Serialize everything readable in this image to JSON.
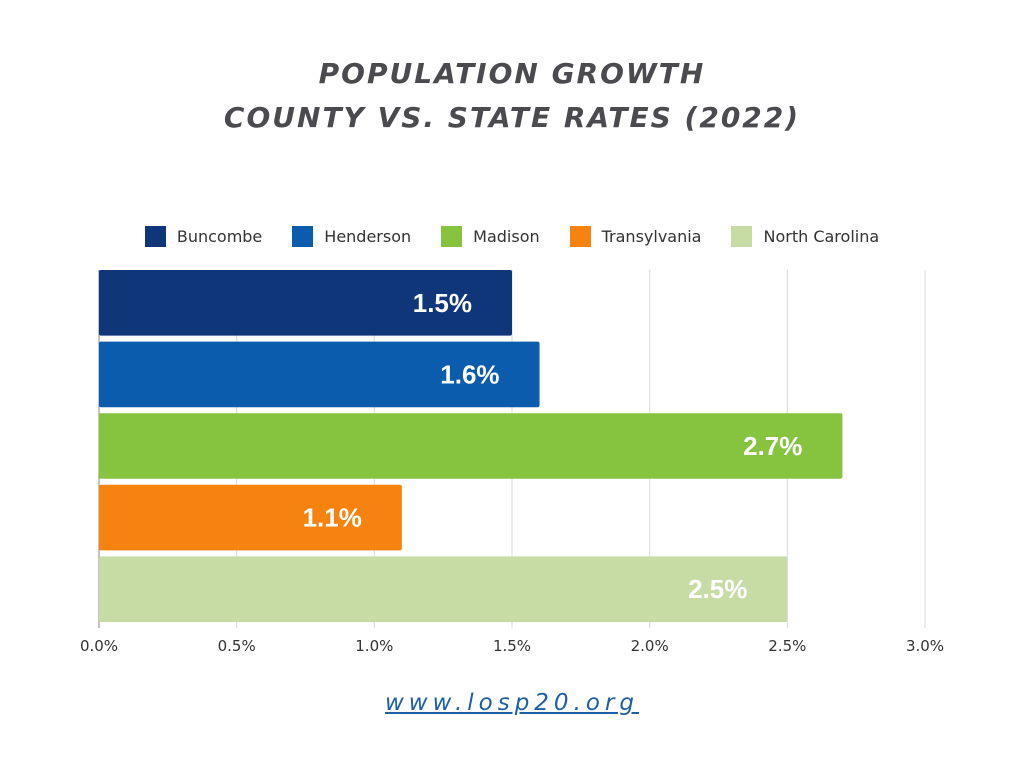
{
  "title_line1": "POPULATION GROWTH",
  "title_line2": "COUNTY VS. STATE RATES (2022)",
  "footer_link": "www.losp20.org",
  "colors": {
    "title": "#4a4a4f",
    "grid": "#d9d9d9",
    "axis": "#888888",
    "bar_label": "#ffffff",
    "link": "#1f5fa8"
  },
  "chart_data": {
    "type": "bar",
    "orientation": "horizontal",
    "title": "POPULATION GROWTH COUNTY VS. STATE RATES (2022)",
    "xlim": [
      0,
      3.0
    ],
    "x_ticks": [
      "0.0%",
      "0.5%",
      "1.0%",
      "1.5%",
      "2.0%",
      "2.5%",
      "3.0%"
    ],
    "grid": "vertical",
    "legend_position": "top-center",
    "series": [
      {
        "name": "Buncombe",
        "value": 1.5,
        "label": "1.5%",
        "color": "#10367a"
      },
      {
        "name": "Henderson",
        "value": 1.6,
        "label": "1.6%",
        "color": "#0b5cad"
      },
      {
        "name": "Madison",
        "value": 2.7,
        "label": "2.7%",
        "color": "#86c440"
      },
      {
        "name": "Transylvania",
        "value": 1.1,
        "label": "1.1%",
        "color": "#f6830f"
      },
      {
        "name": "North Carolina",
        "value": 2.5,
        "label": "2.5%",
        "color": "#c6dca4"
      }
    ]
  }
}
